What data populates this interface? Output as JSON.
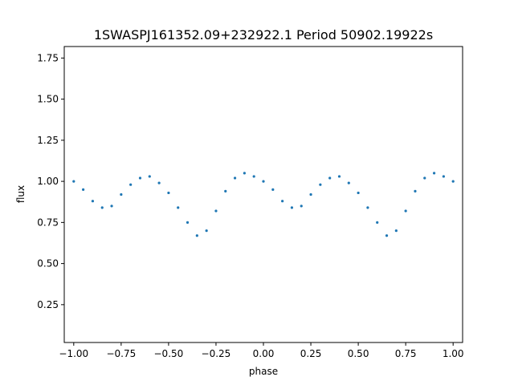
{
  "chart_data": {
    "type": "scatter",
    "title": "1SWASPJ161352.09+232922.1 Period 50902.19922s",
    "xlabel": "phase",
    "ylabel": "flux",
    "xlim": [
      -1.05,
      1.05
    ],
    "ylim": [
      0.02,
      1.82
    ],
    "x_ticks": [
      -1.0,
      -0.75,
      -0.5,
      -0.25,
      0.0,
      0.25,
      0.5,
      0.75,
      1.0
    ],
    "x_tick_labels": [
      "−1.00",
      "−0.75",
      "−0.50",
      "−0.25",
      "0.00",
      "0.25",
      "0.50",
      "0.75",
      "1.00"
    ],
    "y_ticks": [
      0.25,
      0.5,
      0.75,
      1.0,
      1.25,
      1.5,
      1.75
    ],
    "y_tick_labels": [
      "0.25",
      "0.50",
      "0.75",
      "1.00",
      "1.25",
      "1.50",
      "1.75"
    ],
    "grid": false,
    "marker_color": "#1f77b4",
    "series": [
      {
        "x": [
          -1.0,
          -0.95,
          -0.9,
          -0.85,
          -0.8,
          -0.75,
          -0.7,
          -0.65,
          -0.6,
          -0.55,
          -0.5,
          -0.45,
          -0.4,
          -0.35,
          -0.3,
          -0.25,
          -0.2,
          -0.15,
          -0.1,
          -0.05,
          0.0,
          0.05,
          0.1,
          0.15,
          0.2,
          0.25,
          0.3,
          0.35,
          0.4,
          0.45,
          0.5,
          0.55,
          0.6,
          0.65,
          0.7,
          0.75,
          0.8,
          0.85,
          0.9,
          0.95,
          1.0
        ],
        "y": [
          1.0,
          0.95,
          0.88,
          0.84,
          0.85,
          0.92,
          0.98,
          1.02,
          1.03,
          0.99,
          0.93,
          0.84,
          0.75,
          0.67,
          0.7,
          0.82,
          0.94,
          1.02,
          1.05,
          1.03,
          1.0,
          0.95,
          0.88,
          0.84,
          0.85,
          0.92,
          0.98,
          1.02,
          1.03,
          0.99,
          0.93,
          0.84,
          0.75,
          0.67,
          0.7,
          0.82,
          0.94,
          1.02,
          1.05,
          1.03,
          1.0
        ]
      }
    ]
  }
}
